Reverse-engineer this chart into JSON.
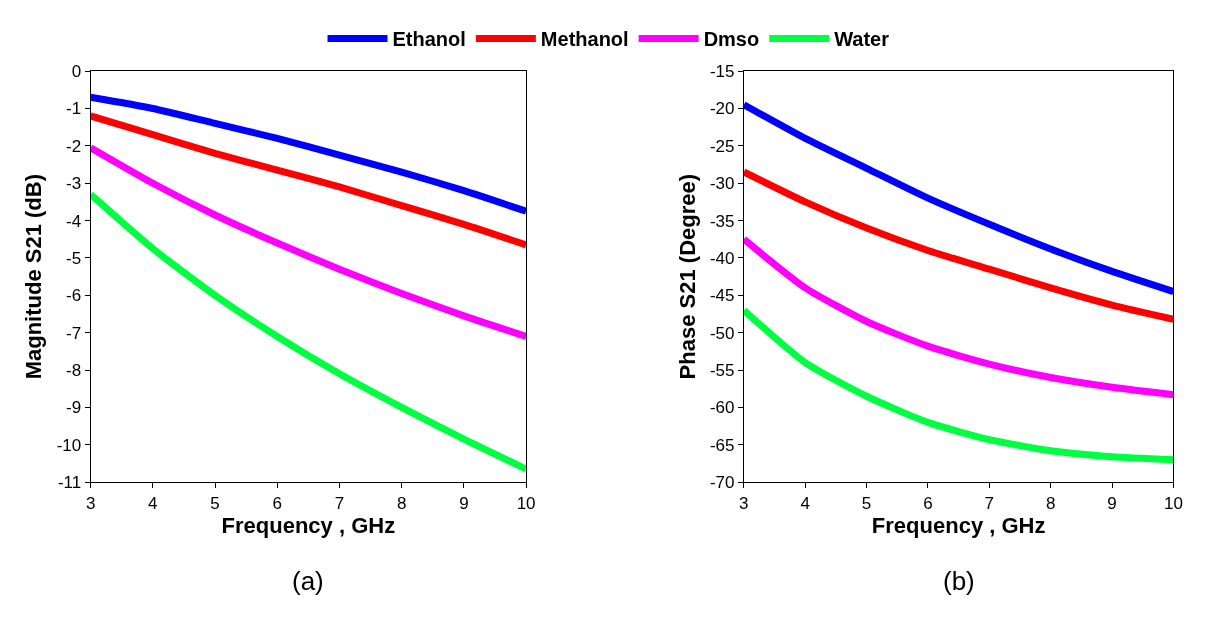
{
  "chart_data": [
    {
      "type": "line",
      "xlabel": "Frequency , GHz",
      "ylabel": "Magnitude S21 (dB)",
      "x": [
        3,
        4,
        5,
        6,
        7,
        8,
        9,
        10
      ],
      "xlim": [
        3,
        10
      ],
      "xticks": [
        3,
        4,
        5,
        6,
        7,
        8,
        9,
        10
      ],
      "ylim": [
        -11,
        0
      ],
      "yticks": [
        -11,
        -10,
        -9,
        -8,
        -7,
        -6,
        -5,
        -4,
        -3,
        -2,
        -1,
        0
      ],
      "legend": "top",
      "annotations": [
        "(a)"
      ],
      "series": [
        {
          "name": "Ethanol",
          "color": "#0000ff",
          "values": [
            -0.7,
            -1.0,
            -1.4,
            -1.8,
            -2.25,
            -2.7,
            -3.2,
            -3.75
          ]
        },
        {
          "name": "Methanol",
          "color": "#ff0000",
          "values": [
            -1.2,
            -1.7,
            -2.2,
            -2.65,
            -3.1,
            -3.6,
            -4.1,
            -4.65
          ]
        },
        {
          "name": "Dmso",
          "color": "#ff00ff",
          "values": [
            -2.05,
            -3.0,
            -3.85,
            -4.6,
            -5.3,
            -5.95,
            -6.55,
            -7.1
          ]
        },
        {
          "name": "Water",
          "color": "#00ff40",
          "values": [
            -3.3,
            -4.75,
            -6.0,
            -7.1,
            -8.1,
            -9.0,
            -9.85,
            -10.65
          ]
        }
      ]
    },
    {
      "type": "line",
      "xlabel": "Frequency , GHz",
      "ylabel": "Phase S21 (Degree)",
      "x": [
        3,
        4,
        5,
        6,
        7,
        8,
        9,
        10
      ],
      "xlim": [
        3,
        10
      ],
      "xticks": [
        3,
        4,
        5,
        6,
        7,
        8,
        9,
        10
      ],
      "ylim": [
        -70,
        -15
      ],
      "yticks": [
        -70,
        -65,
        -60,
        -55,
        -50,
        -45,
        -40,
        -35,
        -30,
        -25,
        -20,
        -15
      ],
      "annotations": [
        "(b)"
      ],
      "series": [
        {
          "color": "#0000ff",
          "values": [
            -19.5,
            -24,
            -28,
            -32,
            -35.5,
            -38.8,
            -41.8,
            -44.5
          ]
        },
        {
          "color": "#ff0000",
          "values": [
            -28.5,
            -32.5,
            -36,
            -39,
            -41.5,
            -44,
            -46.3,
            -48.2
          ]
        },
        {
          "color": "#ff00ff",
          "values": [
            -37.5,
            -44,
            -48.5,
            -51.8,
            -54.2,
            -56,
            -57.3,
            -58.3
          ]
        },
        {
          "color": "#00ff40",
          "values": [
            -47,
            -54,
            -58.5,
            -62,
            -64.3,
            -65.8,
            -66.6,
            -67
          ]
        }
      ]
    }
  ]
}
